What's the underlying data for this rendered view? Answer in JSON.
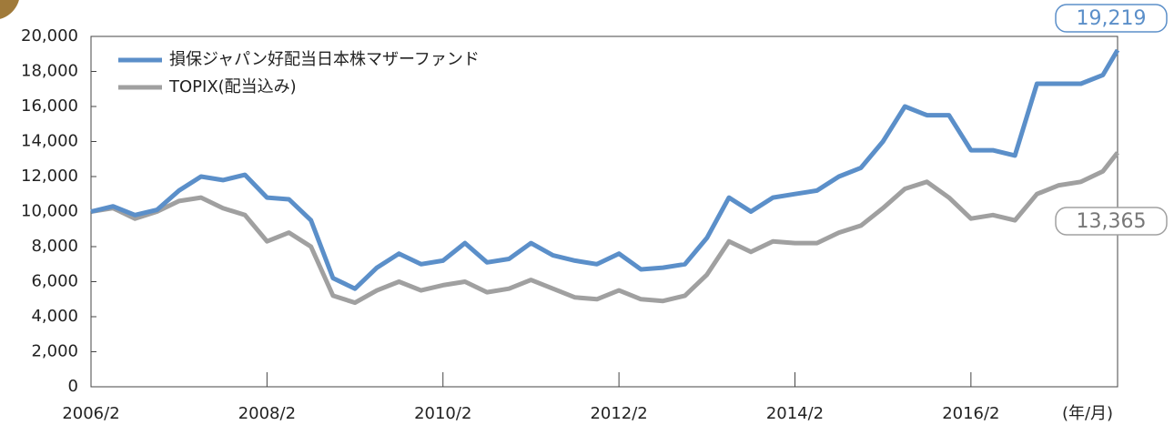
{
  "chart_data": {
    "type": "line",
    "x": [
      "2006/2",
      "2006/5",
      "2006/8",
      "2006/11",
      "2007/2",
      "2007/5",
      "2007/8",
      "2007/11",
      "2008/2",
      "2008/5",
      "2008/8",
      "2008/11",
      "2009/2",
      "2009/5",
      "2009/8",
      "2009/11",
      "2010/2",
      "2010/5",
      "2010/8",
      "2010/11",
      "2011/2",
      "2011/5",
      "2011/8",
      "2011/11",
      "2012/2",
      "2012/5",
      "2012/8",
      "2012/11",
      "2013/2",
      "2013/5",
      "2013/8",
      "2013/11",
      "2014/2",
      "2014/5",
      "2014/8",
      "2014/11",
      "2015/2",
      "2015/5",
      "2015/8",
      "2015/11",
      "2016/2",
      "2016/5",
      "2016/8",
      "2016/11",
      "2017/2",
      "2017/5",
      "2017/8",
      "2017/10"
    ],
    "series": [
      {
        "name": "損保ジャパン好配当日本株マザーファンド",
        "color": "#5b8fc9",
        "values": [
          10000,
          10300,
          9800,
          10100,
          11200,
          12000,
          11800,
          12100,
          10800,
          10700,
          9500,
          6200,
          5600,
          6800,
          7600,
          7000,
          7200,
          8200,
          7100,
          7300,
          8200,
          7500,
          7200,
          7000,
          7600,
          6700,
          6800,
          7000,
          8500,
          10800,
          10000,
          10800,
          11000,
          11200,
          12000,
          12500,
          14000,
          16000,
          15500,
          15500,
          13500,
          13500,
          13200,
          17300,
          17300,
          17300,
          17800,
          19219
        ],
        "value_labels": [
          null,
          null,
          null,
          null,
          null,
          null,
          null,
          null,
          null,
          null,
          null,
          null,
          null,
          null,
          null,
          null,
          null,
          null,
          null,
          null,
          null,
          null,
          null,
          null,
          null,
          null,
          null,
          null,
          null,
          null,
          null,
          null,
          null,
          null,
          null,
          null,
          null,
          null,
          null,
          null,
          null,
          null,
          null,
          null,
          null,
          null,
          null,
          "19,219"
        ]
      },
      {
        "name": "TOPIX(配当込み)",
        "color": "#a0a0a0",
        "values": [
          10000,
          10200,
          9600,
          10000,
          10600,
          10800,
          10200,
          9800,
          8300,
          8800,
          8000,
          5200,
          4800,
          5500,
          6000,
          5500,
          5800,
          6000,
          5400,
          5600,
          6100,
          5600,
          5100,
          5000,
          5500,
          5000,
          4900,
          5200,
          6400,
          8300,
          7700,
          8300,
          8200,
          8200,
          8800,
          9200,
          10200,
          11300,
          11700,
          10800,
          9600,
          9800,
          9500,
          11000,
          11500,
          11700,
          12300,
          13365
        ],
        "value_labels": [
          null,
          null,
          null,
          null,
          null,
          null,
          null,
          null,
          null,
          null,
          null,
          null,
          null,
          null,
          null,
          null,
          null,
          null,
          null,
          null,
          null,
          null,
          null,
          null,
          null,
          null,
          null,
          null,
          null,
          null,
          null,
          null,
          null,
          null,
          null,
          null,
          null,
          null,
          null,
          null,
          null,
          null,
          null,
          null,
          null,
          null,
          null,
          "13,365"
        ]
      }
    ],
    "xlim": [
      "2006/2",
      "2017/10"
    ],
    "xticks": [
      "2006/2",
      "2008/2",
      "2010/2",
      "2012/2",
      "2014/2",
      "2016/2"
    ],
    "x_axis_label": "(年/月)",
    "ylim": [
      0,
      20000
    ],
    "yticks": [
      0,
      {
        "value": 2000,
        "label": "2,000"
      },
      {
        "value": 4000,
        "label": "4,000"
      },
      {
        "value": 6000,
        "label": "6,000"
      },
      {
        "value": 8000,
        "label": "8,000"
      },
      {
        "value": 10000,
        "label": "10,000"
      },
      {
        "value": 12000,
        "label": "12,000"
      },
      {
        "value": 14000,
        "label": "14,000"
      },
      {
        "value": 16000,
        "label": "16,000"
      },
      {
        "value": 18000,
        "label": "18,000"
      },
      {
        "value": 20000,
        "label": "20,000"
      }
    ],
    "legend": "top-left"
  }
}
